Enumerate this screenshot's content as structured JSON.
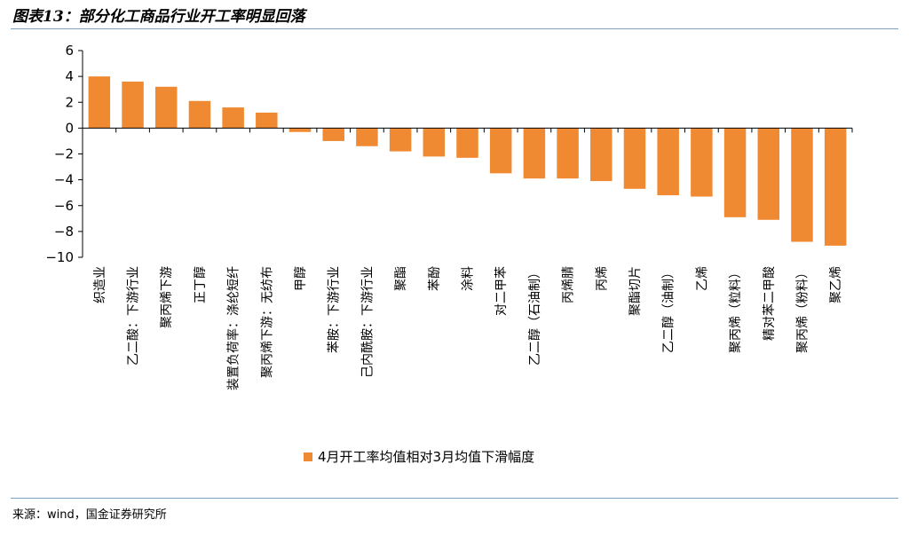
{
  "header": {
    "title": "图表13：部分化工商品行业开工率明显回落"
  },
  "footer": {
    "source": "来源：wind，国金证券研究所"
  },
  "colors": {
    "bar": "#f08a32",
    "rule": "#7fa0be"
  },
  "chart_data": {
    "type": "bar",
    "title": "",
    "xlabel": "",
    "ylabel": "",
    "ylim": [
      -10,
      6
    ],
    "yticks": [
      6,
      4,
      2,
      0,
      -2,
      -4,
      -6,
      -8,
      -10
    ],
    "grid": false,
    "legend_position": "bottom",
    "categories": [
      "织造业",
      "乙二酸：下游行业",
      "聚丙烯下游",
      "正丁醇",
      "装置负荷率：涤纶短纤",
      "聚丙烯下游：无纺布",
      "甲醇",
      "苯胺：下游行业",
      "己内酰胺：下游行业",
      "聚酯",
      "苯酚",
      "涂料",
      "对二甲苯",
      "乙二醇（石油制）",
      "丙烯腈",
      "丙烯",
      "聚酯切片",
      "乙二醇（油制）",
      "乙烯",
      "聚丙烯（粒料）",
      "精对苯二甲酸",
      "聚丙烯（粉料）",
      "聚乙烯"
    ],
    "series": [
      {
        "name": "4月开工率均值相对3月均值下滑幅度",
        "values": [
          4.0,
          3.6,
          3.2,
          2.1,
          1.6,
          1.2,
          -0.3,
          -1.0,
          -1.4,
          -1.8,
          -2.2,
          -2.3,
          -3.5,
          -3.9,
          -3.9,
          -4.1,
          -4.7,
          -5.2,
          -5.3,
          -6.9,
          -7.1,
          -8.8,
          -9.1
        ]
      }
    ]
  }
}
